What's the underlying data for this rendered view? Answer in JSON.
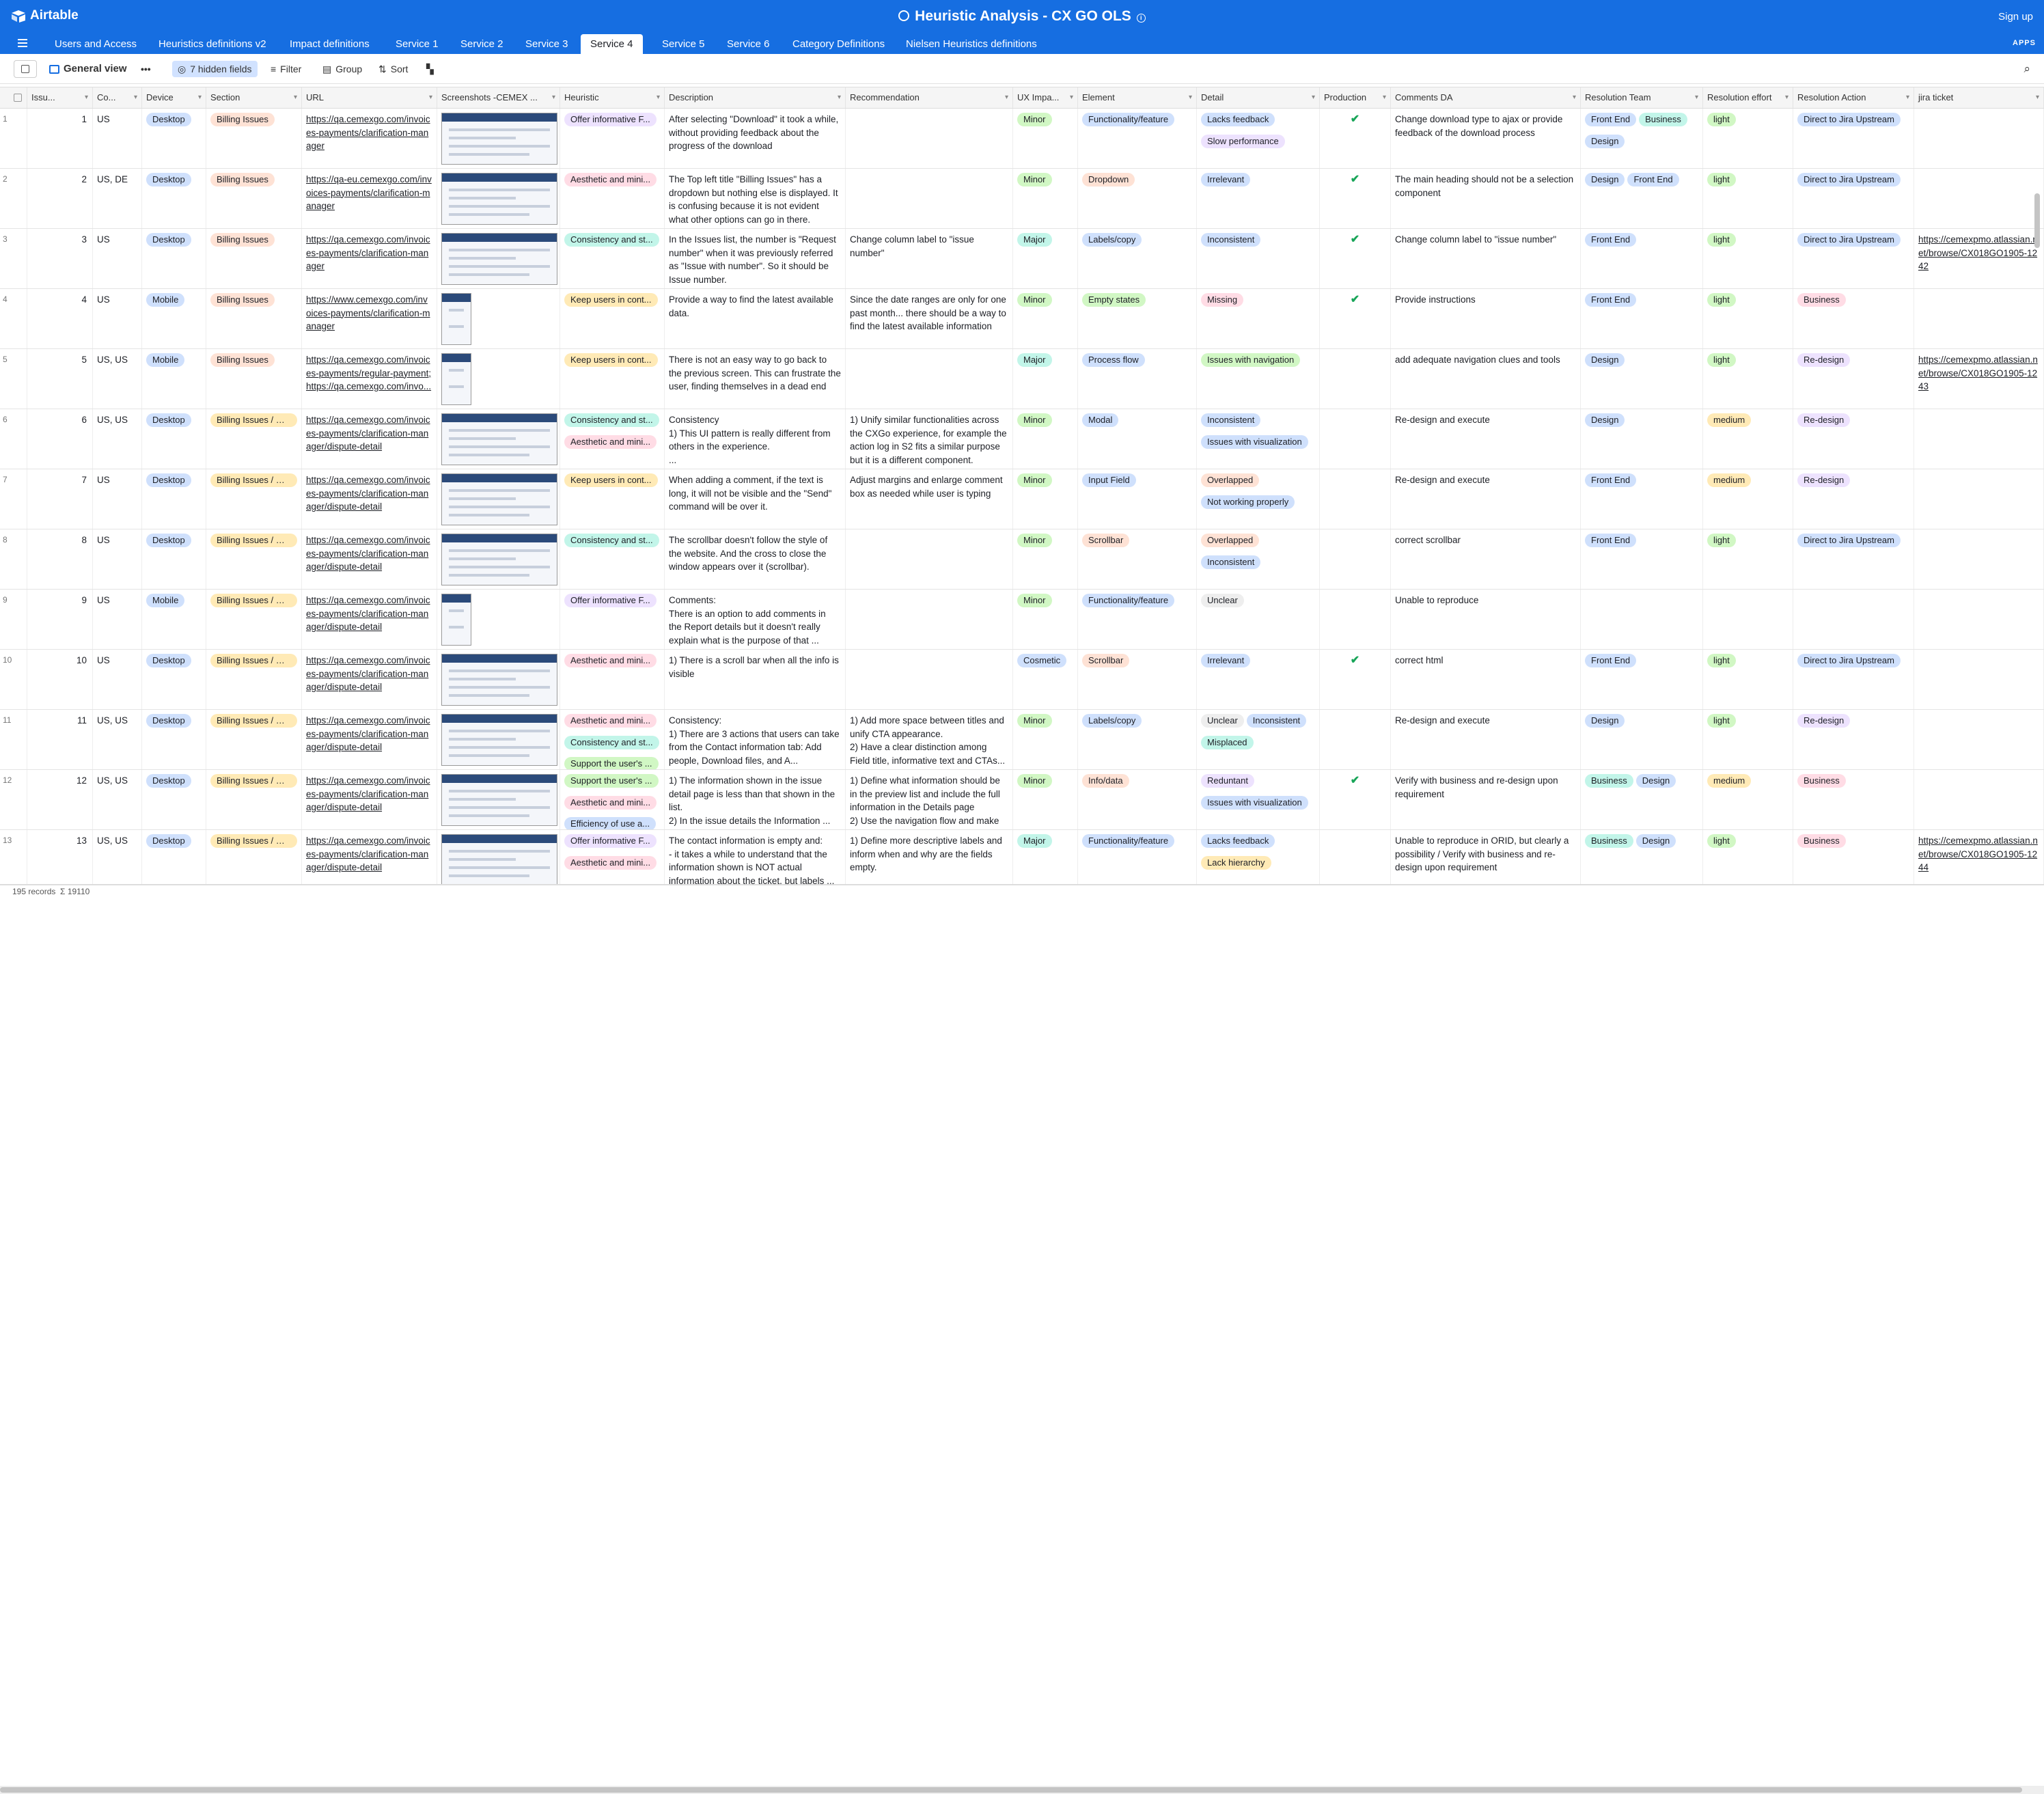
{
  "app": {
    "logo_text": "Airtable",
    "title": "Heuristic Analysis - CX GO OLS",
    "signup": "Sign up",
    "apps": "APPS"
  },
  "tabs": [
    "Users and Access",
    "Heuristics definitions v2",
    "Impact definitions",
    "Service 1",
    "Service 2",
    "Service 3",
    "Service 4",
    "Service 5",
    "Service 6",
    "Category Definitions",
    "Nielsen Heuristics definitions"
  ],
  "active_tab": "Service 4",
  "toolbar": {
    "view_name": "General view",
    "hidden_fields": "7 hidden fields",
    "filter": "Filter",
    "group": "Group",
    "sort": "Sort"
  },
  "columns": [
    "Issu...",
    "Co...",
    "Device",
    "Section",
    "URL",
    "Screenshots -CEMEX ...",
    "Heuristic",
    "Description",
    "Recommendation",
    "UX Impa...",
    "Element",
    "Detail",
    "Production",
    "Comments DA",
    "Resolution Team",
    "Resolution effort",
    "Resolution Action",
    "jira ticket"
  ],
  "footer": {
    "records": "195 records",
    "sum_label": "Σ",
    "sum": "19110"
  },
  "colors": {
    "blue_pill": "#cfe0fc",
    "red_pill": "#ffdce5",
    "orange_pill": "#fee2d5",
    "yellow_pill": "#ffeab6",
    "green_pill": "#d1f7c4",
    "purple_pill": "#ede2fe",
    "teal_pill": "#c2f5e9",
    "gray_pill": "#eeeeee",
    "cyan_pill": "#d0f0fd",
    "accent": "#166ee1"
  },
  "rows": [
    {
      "n": "1",
      "issue": "1",
      "country": "US",
      "device": "Desktop",
      "section": "Billing Issues",
      "url": "https://qa.cemexgo.com/invoices-payments/clarification-manager",
      "heuristics": [
        "Offer informative F..."
      ],
      "description": "After selecting \"Download\" it took a while, without providing feedback about the progress of the download",
      "recommendation": "",
      "impact": "Minor",
      "element": "Functionality/feature",
      "detail": [
        "Lacks feedback",
        "Slow performance"
      ],
      "production": "✔",
      "comments": "Change download type to ajax or provide feedback of the download process",
      "team": [
        "Front End",
        "Business",
        "Design"
      ],
      "effort": "light",
      "action": "Direct to Jira Upstream",
      "jira": ""
    },
    {
      "n": "2",
      "issue": "2",
      "country": "US, DE",
      "device": "Desktop",
      "section": "Billing Issues",
      "url": "https://qa-eu.cemexgo.com/invoices-payments/clarification-manager",
      "heuristics": [
        "Aesthetic and mini..."
      ],
      "description": "The Top left title \"Billing Issues\" has a dropdown but nothing else is displayed. It is confusing because it is not evident what other options can go in there.",
      "recommendation": "",
      "impact": "Minor",
      "element": "Dropdown",
      "detail": [
        "Irrelevant"
      ],
      "production": "✔",
      "comments": "The main heading should not be a selection component",
      "team": [
        "Design",
        "Front End"
      ],
      "effort": "light",
      "action": "Direct to Jira Upstream",
      "jira": ""
    },
    {
      "n": "3",
      "issue": "3",
      "country": "US",
      "device": "Desktop",
      "section": "Billing Issues",
      "url": "https://qa.cemexgo.com/invoices-payments/clarification-manager",
      "heuristics": [
        "Consistency and st..."
      ],
      "description": "In the Issues list, the number is \"Request number\" when it was previously referred as \"Issue with number\". So it should be Issue number.",
      "recommendation": "Change column label to \"issue number\"",
      "impact": "Major",
      "element": "Labels/copy",
      "detail": [
        "Inconsistent"
      ],
      "production": "✔",
      "comments": "Change column label to \"issue number\"",
      "team": [
        "Front End"
      ],
      "effort": "light",
      "action": "Direct to Jira Upstream",
      "jira": "https://cemexpmo.atlassian.net/browse/CX018GO1905-1242"
    },
    {
      "n": "4",
      "issue": "4",
      "country": "US",
      "device": "Mobile",
      "section": "Billing Issues",
      "url": "https://www.cemexgo.com/invoices-payments/clarification-manager",
      "heuristics": [
        "Keep users in cont..."
      ],
      "description": "Provide a way to find the latest available data.",
      "recommendation": "Since the date ranges are only for one past month... there should be a way to find the latest available information",
      "impact": "Minor",
      "element": "Empty states",
      "detail": [
        "Missing"
      ],
      "production": "✔",
      "comments": "Provide instructions",
      "team": [
        "Front End"
      ],
      "effort": "light",
      "action": "Business",
      "jira": ""
    },
    {
      "n": "5",
      "issue": "5",
      "country": "US, US",
      "device": "Mobile",
      "section": "Billing Issues",
      "url": "https://qa.cemexgo.com/invoices-payments/regular-payment; https://qa.cemexgo.com/invo...",
      "heuristics": [
        "Keep users in cont..."
      ],
      "description": "There is not an easy way to go back to the previous screen. This can frustrate the user, finding themselves in a dead end",
      "recommendation": "",
      "impact": "Major",
      "element": "Process flow",
      "detail": [
        "Issues with navigation"
      ],
      "production": "",
      "comments": "add adequate navigation clues and tools",
      "team": [
        "Design"
      ],
      "effort": "light",
      "action": "Re-design",
      "jira": "https://cemexpmo.atlassian.net/browse/CX018GO1905-1243"
    },
    {
      "n": "6",
      "issue": "6",
      "country": "US, US",
      "device": "Desktop",
      "section": "Billing Issues / De...",
      "url": "https://qa.cemexgo.com/invoices-payments/clarification-manager/dispute-detail",
      "heuristics": [
        "Consistency and st...",
        "Aesthetic and mini..."
      ],
      "description": "Consistency\n1) This UI pattern is really different from others in the experience.\n...",
      "recommendation": "1) Unify similar functionalities across the CXGo experience, for example the action log in S2 fits a similar purpose but it is a different component.",
      "impact": "Minor",
      "element": "Modal",
      "detail": [
        "Inconsistent",
        "Issues with visualization"
      ],
      "production": "",
      "comments": "Re-design and execute",
      "team": [
        "Design"
      ],
      "effort": "medium",
      "action": "Re-design",
      "jira": ""
    },
    {
      "n": "7",
      "issue": "7",
      "country": "US",
      "device": "Desktop",
      "section": "Billing Issues / De...",
      "url": "https://qa.cemexgo.com/invoices-payments/clarification-manager/dispute-detail",
      "heuristics": [
        "Keep users in cont..."
      ],
      "description": "When adding a comment, if the text is long, it will not be visible and the \"Send\" command will be over it.",
      "recommendation": "Adjust margins and enlarge comment box as needed while user is typing",
      "impact": "Minor",
      "element": "Input Field",
      "detail": [
        "Overlapped",
        "Not working properly"
      ],
      "production": "",
      "comments": "Re-design and execute",
      "team": [
        "Front End"
      ],
      "effort": "medium",
      "action": "Re-design",
      "jira": ""
    },
    {
      "n": "8",
      "issue": "8",
      "country": "US",
      "device": "Desktop",
      "section": "Billing Issues / De...",
      "url": "https://qa.cemexgo.com/invoices-payments/clarification-manager/dispute-detail",
      "heuristics": [
        "Consistency and st..."
      ],
      "description": "The scrollbar doesn't follow the style of the website. And the cross to close the window appears over it (scrollbar).",
      "recommendation": "",
      "impact": "Minor",
      "element": "Scrollbar",
      "detail": [
        "Overlapped",
        "Inconsistent"
      ],
      "production": "",
      "comments": "correct scrollbar",
      "team": [
        "Front End"
      ],
      "effort": "light",
      "action": "Direct to Jira Upstream",
      "jira": ""
    },
    {
      "n": "9",
      "issue": "9",
      "country": "US",
      "device": "Mobile",
      "section": "Billing Issues / De...",
      "url": "https://qa.cemexgo.com/invoices-payments/clarification-manager/dispute-detail",
      "heuristics": [
        "Offer informative F..."
      ],
      "description": "Comments:\nThere is an option to add comments in the Report details but it doesn't really explain what is the purpose of that ...",
      "recommendation": "",
      "impact": "Minor",
      "element": "Functionality/feature",
      "detail": [
        "Unclear"
      ],
      "production": "",
      "comments": "Unable to reproduce",
      "team": [],
      "effort": "",
      "action": "",
      "jira": ""
    },
    {
      "n": "10",
      "issue": "10",
      "country": "US",
      "device": "Desktop",
      "section": "Billing Issues / De...",
      "url": "https://qa.cemexgo.com/invoices-payments/clarification-manager/dispute-detail",
      "heuristics": [
        "Aesthetic and mini..."
      ],
      "description": "1) There is a scroll bar when all the info is visible",
      "recommendation": "",
      "impact": "Cosmetic",
      "element": "Scrollbar",
      "detail": [
        "Irrelevant"
      ],
      "production": "✔",
      "comments": "correct html",
      "team": [
        "Front End"
      ],
      "effort": "light",
      "action": "Direct to Jira Upstream",
      "jira": ""
    },
    {
      "n": "11",
      "issue": "11",
      "country": "US, US",
      "device": "Desktop",
      "section": "Billing Issues / De...",
      "url": "https://qa.cemexgo.com/invoices-payments/clarification-manager/dispute-detail",
      "heuristics": [
        "Aesthetic and mini...",
        "Consistency and st...",
        "Support the user's ..."
      ],
      "description": "Consistency:\n1) There are 3 actions that users can take from the Contact information tab: Add people, Download files, and A...",
      "recommendation": "1) Add more space between titles and unify CTA appearance.\n2) Have a clear distinction among Field title, informative text and CTAs...",
      "impact": "Minor",
      "element": "Labels/copy",
      "detail": [
        "Unclear",
        "Inconsistent",
        "Misplaced"
      ],
      "production": "",
      "comments": "Re-design and execute",
      "team": [
        "Design"
      ],
      "effort": "light",
      "action": "Re-design",
      "jira": ""
    },
    {
      "n": "12",
      "issue": "12",
      "country": "US, US",
      "device": "Desktop",
      "section": "Billing Issues / De...",
      "url": "https://qa.cemexgo.com/invoices-payments/clarification-manager/dispute-detail",
      "heuristics": [
        "Support the user's ...",
        "Aesthetic and mini...",
        "Efficiency of use a..."
      ],
      "description": "1) The information shown in the issue detail page is less than that shown in the list.\n2) In the issue details the Information ...",
      "recommendation": "1) Define what information should be in the preview list and include the full information in the Details page\n2) Use the navigation flow and make ...",
      "impact": "Minor",
      "element": "Info/data",
      "detail": [
        "Reduntant",
        "Issues with visualization"
      ],
      "production": "✔",
      "comments": "Verify with business and re-design upon requirement",
      "team": [
        "Business",
        "Design"
      ],
      "effort": "medium",
      "action": "Business",
      "jira": ""
    },
    {
      "n": "13",
      "issue": "13",
      "country": "US, US",
      "device": "Desktop",
      "section": "Billing Issues / De...",
      "url": "https://qa.cemexgo.com/invoices-payments/clarification-manager/dispute-detail",
      "heuristics": [
        "Offer informative F...",
        "Aesthetic and mini..."
      ],
      "description": "The contact information is empty and:\n- it takes a while to understand that the information shown is NOT actual information about the ticket, but labels ...",
      "recommendation": "1) Define more descriptive labels and inform when and why are the fields empty.",
      "impact": "Major",
      "element": "Functionality/feature",
      "detail": [
        "Lacks feedback",
        "Lack hierarchy"
      ],
      "production": "",
      "comments": "Unable to reproduce in ORID, but clearly a possibility / Verify with business and re-design upon requirement",
      "team": [
        "Business",
        "Design"
      ],
      "effort": "light",
      "action": "Business",
      "jira": "https://cemexpmo.atlassian.net/browse/CX018GO1905-1244"
    }
  ]
}
